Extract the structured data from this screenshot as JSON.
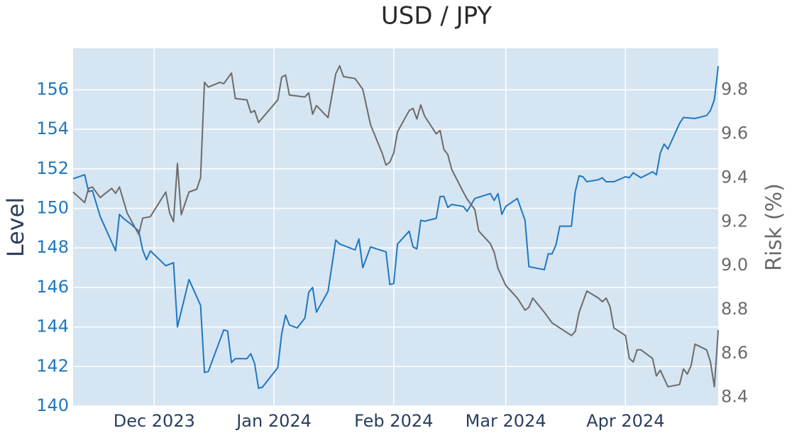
{
  "chart_data": {
    "type": "line",
    "title": "USD / JPY",
    "ylabel": "Level",
    "y2label": "Risk (%)",
    "xlim": [
      "2023-11-10",
      "2024-04-25"
    ],
    "xticks": [
      {
        "value": "2023-12-01",
        "label": "Dec 2023"
      },
      {
        "value": "2024-01-01",
        "label": "Jan 2024"
      },
      {
        "value": "2024-02-01",
        "label": "Feb 2024"
      },
      {
        "value": "2024-03-01",
        "label": "Mar 2024"
      },
      {
        "value": "2024-04-01",
        "label": "Apr 2024"
      }
    ],
    "ylim": [
      140,
      158.1
    ],
    "yticks": [
      140,
      142,
      144,
      146,
      148,
      150,
      152,
      154,
      156
    ],
    "y2lim": [
      8.36,
      9.99
    ],
    "y2ticks": [
      8.4,
      8.6,
      8.8,
      {
        "value": 9,
        "label": "9.0"
      },
      9.2,
      9.4,
      9.6,
      9.8
    ],
    "grid": true,
    "ycolor": "#1f77c1",
    "y2color": "#6b6b6b",
    "series": [
      {
        "color": "#1f77c1",
        "x": [
          "2023-11-10",
          "2023-11-13",
          "2023-11-14",
          "2023-11-15",
          "2023-11-17",
          "2023-11-21",
          "2023-11-22",
          "2023-11-23",
          "2023-11-25",
          "2023-11-27",
          "2023-11-28",
          "2023-11-29",
          "2023-11-30",
          "2023-12-04",
          "2023-12-06",
          "2023-12-07",
          "2023-12-10",
          "2023-12-13",
          "2023-12-14",
          "2023-12-15",
          "2023-12-19",
          "2023-12-20",
          "2023-12-21",
          "2023-12-22",
          "2023-12-25",
          "2023-12-26",
          "2023-12-27",
          "2023-12-28",
          "2023-12-29",
          "2024-01-02",
          "2024-01-03",
          "2024-01-04",
          "2024-01-05",
          "2024-01-07",
          "2024-01-09",
          "2024-01-10",
          "2024-01-11",
          "2024-01-12",
          "2024-01-15",
          "2024-01-17",
          "2024-01-18",
          "2024-01-22",
          "2024-01-23",
          "2024-01-24",
          "2024-01-26",
          "2024-01-30",
          "2024-01-31",
          "2024-02-01",
          "2024-02-02",
          "2024-02-05",
          "2024-02-06",
          "2024-02-07",
          "2024-02-08",
          "2024-02-09",
          "2024-02-12",
          "2024-02-13",
          "2024-02-14",
          "2024-02-15",
          "2024-02-16",
          "2024-02-19",
          "2024-02-20",
          "2024-02-22",
          "2024-02-26",
          "2024-02-27",
          "2024-02-28",
          "2024-02-29",
          "2024-03-01",
          "2024-03-04",
          "2024-03-06",
          "2024-03-07",
          "2024-03-11",
          "2024-03-12",
          "2024-03-13",
          "2024-03-14",
          "2024-03-15",
          "2024-03-18",
          "2024-03-19",
          "2024-03-20",
          "2024-03-21",
          "2024-03-22",
          "2024-03-25",
          "2024-03-26",
          "2024-03-27",
          "2024-03-29",
          "2024-04-01",
          "2024-04-02",
          "2024-04-03",
          "2024-04-05",
          "2024-04-08",
          "2024-04-09",
          "2024-04-10",
          "2024-04-11",
          "2024-04-12",
          "2024-04-15",
          "2024-04-16",
          "2024-04-19",
          "2024-04-22",
          "2024-04-23",
          "2024-04-24",
          "2024-04-25"
        ],
        "values": [
          151.5,
          151.7,
          150.85,
          150.9,
          149.6,
          147.85,
          149.7,
          149.5,
          149.2,
          148.85,
          147.9,
          147.4,
          147.85,
          147.1,
          147.25,
          144.0,
          146.4,
          145.1,
          141.7,
          141.75,
          143.85,
          143.8,
          142.2,
          142.4,
          142.4,
          142.65,
          142.15,
          140.9,
          140.95,
          141.95,
          143.65,
          144.6,
          144.1,
          143.95,
          144.45,
          145.75,
          146.0,
          144.75,
          145.8,
          148.4,
          148.2,
          147.9,
          148.45,
          147.0,
          148.05,
          147.8,
          146.15,
          146.2,
          148.2,
          148.85,
          148.05,
          147.95,
          149.4,
          149.35,
          149.5,
          150.6,
          150.6,
          150.05,
          150.2,
          150.1,
          149.85,
          150.5,
          150.75,
          150.4,
          150.75,
          149.7,
          150.1,
          150.5,
          149.4,
          147.05,
          146.9,
          147.7,
          147.7,
          148.15,
          149.1,
          149.1,
          150.85,
          151.65,
          151.6,
          151.35,
          151.45,
          151.55,
          151.35,
          151.35,
          151.6,
          151.55,
          151.8,
          151.55,
          151.85,
          151.7,
          152.8,
          153.25,
          153.0,
          154.3,
          154.6,
          154.55,
          154.7,
          154.95,
          155.5,
          157.2
        ]
      },
      {
        "color": "#6b6b6b",
        "axis": "y2",
        "x": [
          "2023-11-10",
          "2023-11-13",
          "2023-11-14",
          "2023-11-15",
          "2023-11-17",
          "2023-11-20",
          "2023-11-21",
          "2023-11-22",
          "2023-11-24",
          "2023-11-27",
          "2023-11-28",
          "2023-11-30",
          "2023-12-04",
          "2023-12-05",
          "2023-12-06",
          "2023-12-07",
          "2023-12-08",
          "2023-12-10",
          "2023-12-12",
          "2023-12-13",
          "2023-12-14",
          "2023-12-15",
          "2023-12-18",
          "2023-12-19",
          "2023-12-21",
          "2023-12-22",
          "2023-12-25",
          "2023-12-26",
          "2023-12-27",
          "2023-12-28",
          "2024-01-02",
          "2024-01-03",
          "2024-01-04",
          "2024-01-05",
          "2024-01-09",
          "2024-01-10",
          "2024-01-11",
          "2024-01-12",
          "2024-01-15",
          "2024-01-17",
          "2024-01-18",
          "2024-01-19",
          "2024-01-22",
          "2024-01-24",
          "2024-01-26",
          "2024-01-29",
          "2024-01-30",
          "2024-01-31",
          "2024-02-01",
          "2024-02-02",
          "2024-02-05",
          "2024-02-06",
          "2024-02-07",
          "2024-02-08",
          "2024-02-09",
          "2024-02-12",
          "2024-02-13",
          "2024-02-14",
          "2024-02-15",
          "2024-02-16",
          "2024-02-19",
          "2024-02-20",
          "2024-02-22",
          "2024-02-23",
          "2024-02-26",
          "2024-02-27",
          "2024-02-28",
          "2024-03-01",
          "2024-03-04",
          "2024-03-06",
          "2024-03-07",
          "2024-03-08",
          "2024-03-11",
          "2024-03-13",
          "2024-03-18",
          "2024-03-19",
          "2024-03-20",
          "2024-03-22",
          "2024-03-25",
          "2024-03-26",
          "2024-03-27",
          "2024-03-28",
          "2024-03-29",
          "2024-04-01",
          "2024-04-02",
          "2024-04-03",
          "2024-04-04",
          "2024-04-05",
          "2024-04-08",
          "2024-04-09",
          "2024-04-10",
          "2024-04-12",
          "2024-04-15",
          "2024-04-16",
          "2024-04-17",
          "2024-04-18",
          "2024-04-19",
          "2024-04-22",
          "2024-04-23",
          "2024-04-24",
          "2024-04-25"
        ],
        "values": [
          9.335,
          9.287,
          9.352,
          9.358,
          9.31,
          9.352,
          9.329,
          9.358,
          9.239,
          9.142,
          9.216,
          9.223,
          9.335,
          9.239,
          9.2,
          9.465,
          9.232,
          9.335,
          9.348,
          9.4,
          9.835,
          9.813,
          9.835,
          9.829,
          9.877,
          9.761,
          9.755,
          9.697,
          9.706,
          9.652,
          9.755,
          9.858,
          9.868,
          9.777,
          9.768,
          9.787,
          9.69,
          9.729,
          9.674,
          9.874,
          9.91,
          9.861,
          9.852,
          9.803,
          9.642,
          9.513,
          9.458,
          9.471,
          9.513,
          9.61,
          9.706,
          9.716,
          9.668,
          9.732,
          9.681,
          9.6,
          9.616,
          9.529,
          9.506,
          9.439,
          9.335,
          9.303,
          9.255,
          9.158,
          9.1,
          9.061,
          8.987,
          8.91,
          8.852,
          8.797,
          8.81,
          8.852,
          8.787,
          8.739,
          8.681,
          8.7,
          8.787,
          8.884,
          8.852,
          8.835,
          8.852,
          8.813,
          8.716,
          8.681,
          8.577,
          8.561,
          8.616,
          8.616,
          8.577,
          8.497,
          8.523,
          8.448,
          8.458,
          8.529,
          8.506,
          8.545,
          8.642,
          8.616,
          8.561,
          8.448,
          8.706
        ]
      }
    ]
  }
}
